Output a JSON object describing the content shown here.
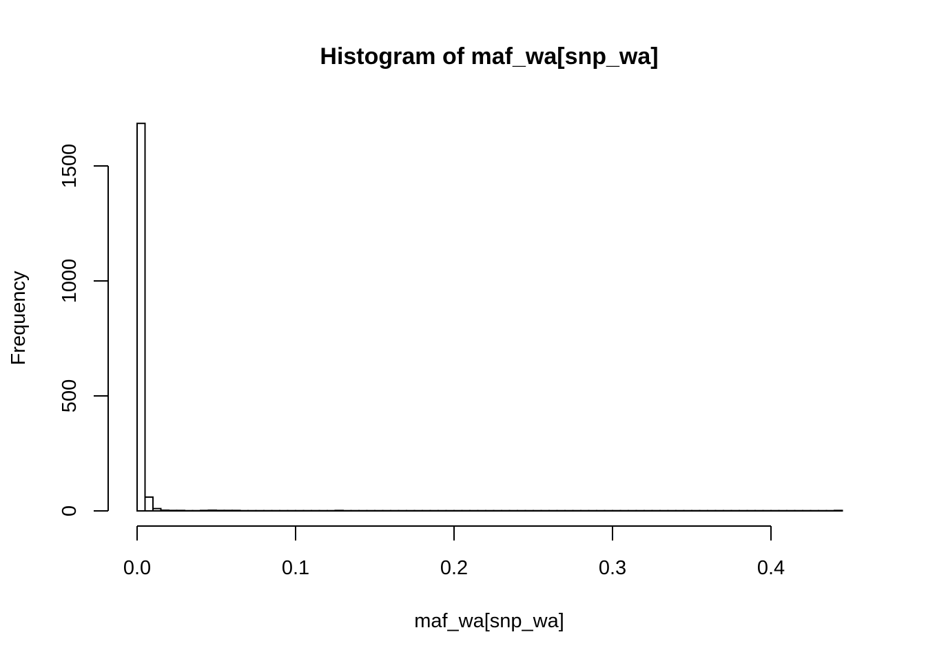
{
  "chart_data": {
    "type": "bar",
    "title": "Histogram of maf_wa[snp_wa]",
    "xlabel": "maf_wa[snp_wa]",
    "ylabel": "Frequency",
    "xlim": [
      0,
      0.445
    ],
    "ylim": [
      0,
      1680
    ],
    "x_ticks": [
      "0.0",
      "0.1",
      "0.2",
      "0.3",
      "0.4"
    ],
    "x_tick_values": [
      0,
      0.1,
      0.2,
      0.3,
      0.4
    ],
    "y_ticks": [
      "0",
      "500",
      "1000",
      "1500"
    ],
    "y_tick_values": [
      0,
      500,
      1000,
      1500
    ],
    "bin_width": 0.005,
    "bins_start": 0,
    "values": [
      1685,
      60,
      10,
      3,
      2,
      2,
      1,
      1,
      2,
      3,
      2,
      2,
      2,
      1,
      1,
      1,
      1,
      1,
      1,
      1,
      1,
      1,
      1,
      1,
      1,
      2,
      1,
      1,
      1,
      1,
      1,
      1,
      1,
      1,
      1,
      1,
      1,
      1,
      1,
      1,
      1,
      1,
      1,
      1,
      1,
      1,
      1,
      1,
      1,
      1,
      1,
      1,
      1,
      1,
      1,
      1,
      1,
      1,
      1,
      1,
      1,
      1,
      1,
      1,
      1,
      1,
      1,
      1,
      1,
      1,
      1,
      1,
      1,
      1,
      1,
      1,
      1,
      1,
      1,
      1,
      1,
      1,
      1,
      1,
      1,
      1,
      1,
      1,
      2
    ],
    "grid": false,
    "legend": "none"
  }
}
